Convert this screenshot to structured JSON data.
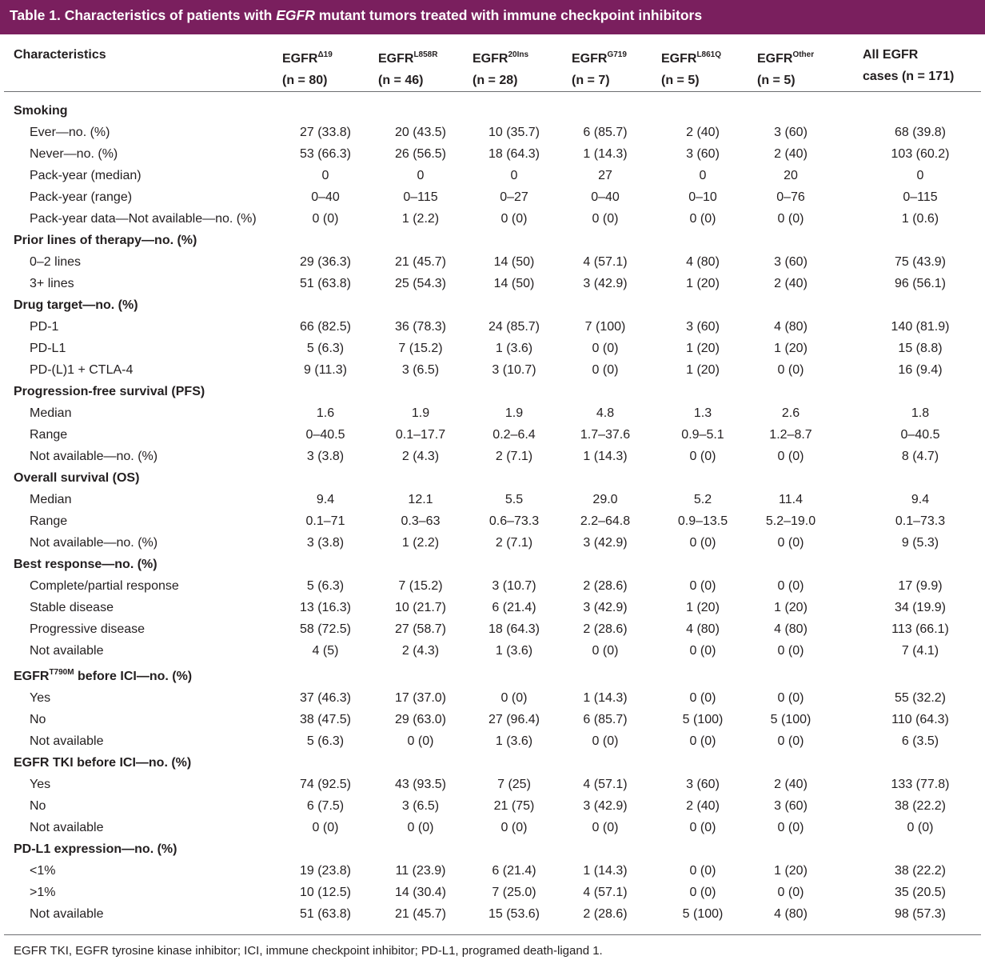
{
  "title": {
    "prefix": "Table 1. Characteristics of patients with ",
    "emphasis": "EGFR",
    "suffix": " mutant tumors treated with immune checkpoint inhibitors"
  },
  "columns": [
    {
      "line1": "Characteristics",
      "sup": "",
      "line2": ""
    },
    {
      "line1": "EGFR",
      "sup": "Δ19",
      "line2": "(n = 80)"
    },
    {
      "line1": "EGFR",
      "sup": "L858R",
      "line2": "(n = 46)"
    },
    {
      "line1": "EGFR",
      "sup": "20Ins",
      "line2": "(n = 28)"
    },
    {
      "line1": "EGFR",
      "sup": "G719",
      "line2": "(n = 7)"
    },
    {
      "line1": "EGFR",
      "sup": "L861Q",
      "line2": "(n = 5)"
    },
    {
      "line1": "EGFR",
      "sup": "Other",
      "line2": "(n = 5)"
    },
    {
      "line1": "All EGFR",
      "sup": "",
      "line2": "cases (n = 171)"
    }
  ],
  "rows": [
    {
      "type": "section",
      "label": "Smoking"
    },
    {
      "type": "row",
      "label": "Ever—no. (%)",
      "values": [
        "27 (33.8)",
        "20 (43.5)",
        "10 (35.7)",
        "6 (85.7)",
        "2 (40)",
        "3 (60)",
        "68 (39.8)"
      ]
    },
    {
      "type": "row",
      "label": "Never—no. (%)",
      "values": [
        "53 (66.3)",
        "26 (56.5)",
        "18 (64.3)",
        "1 (14.3)",
        "3 (60)",
        "2 (40)",
        "103 (60.2)"
      ]
    },
    {
      "type": "row",
      "label": "Pack-year (median)",
      "values": [
        "0",
        "0",
        "0",
        "27",
        "0",
        "20",
        "0"
      ]
    },
    {
      "type": "row",
      "label": "Pack-year (range)",
      "values": [
        "0–40",
        "0–115",
        "0–27",
        "0–40",
        "0–10",
        "0–76",
        "0–115"
      ]
    },
    {
      "type": "row",
      "label": "Pack-year data—Not available—no. (%)",
      "values": [
        "0 (0)",
        "1 (2.2)",
        "0 (0)",
        "0 (0)",
        "0 (0)",
        "0 (0)",
        "1 (0.6)"
      ]
    },
    {
      "type": "section",
      "label": "Prior lines of therapy—no. (%)"
    },
    {
      "type": "row",
      "label": "0–2 lines",
      "values": [
        "29 (36.3)",
        "21 (45.7)",
        "14 (50)",
        "4 (57.1)",
        "4 (80)",
        "3 (60)",
        "75 (43.9)"
      ]
    },
    {
      "type": "row",
      "label": "3+ lines",
      "values": [
        "51 (63.8)",
        "25 (54.3)",
        "14 (50)",
        "3 (42.9)",
        "1 (20)",
        "2 (40)",
        "96 (56.1)"
      ]
    },
    {
      "type": "section",
      "label": "Drug target—no. (%)"
    },
    {
      "type": "row",
      "label": "PD-1",
      "values": [
        "66 (82.5)",
        "36 (78.3)",
        "24 (85.7)",
        "7 (100)",
        "3 (60)",
        "4 (80)",
        "140 (81.9)"
      ]
    },
    {
      "type": "row",
      "label": "PD-L1",
      "values": [
        "5 (6.3)",
        "7 (15.2)",
        "1 (3.6)",
        "0 (0)",
        "1 (20)",
        "1 (20)",
        "15 (8.8)"
      ]
    },
    {
      "type": "row",
      "label": "PD-(L)1 + CTLA-4",
      "values": [
        "9 (11.3)",
        "3 (6.5)",
        "3 (10.7)",
        "0 (0)",
        "1 (20)",
        "0 (0)",
        "16 (9.4)"
      ]
    },
    {
      "type": "section",
      "label": "Progression-free survival (PFS)"
    },
    {
      "type": "row",
      "label": "Median",
      "values": [
        "1.6",
        "1.9",
        "1.9",
        "4.8",
        "1.3",
        "2.6",
        "1.8"
      ]
    },
    {
      "type": "row",
      "label": "Range",
      "values": [
        "0–40.5",
        "0.1–17.7",
        "0.2–6.4",
        "1.7–37.6",
        "0.9–5.1",
        "1.2–8.7",
        "0–40.5"
      ]
    },
    {
      "type": "row",
      "label": "Not available—no. (%)",
      "values": [
        "3 (3.8)",
        "2 (4.3)",
        "2 (7.1)",
        "1 (14.3)",
        "0 (0)",
        "0 (0)",
        "8 (4.7)"
      ]
    },
    {
      "type": "section",
      "label": "Overall survival (OS)"
    },
    {
      "type": "row",
      "label": "Median",
      "values": [
        "9.4",
        "12.1",
        "5.5",
        "29.0",
        "5.2",
        "11.4",
        "9.4"
      ]
    },
    {
      "type": "row",
      "label": "Range",
      "values": [
        "0.1–71",
        "0.3–63",
        "0.6–73.3",
        "2.2–64.8",
        "0.9–13.5",
        "5.2–19.0",
        "0.1–73.3"
      ]
    },
    {
      "type": "row",
      "label": "Not available—no. (%)",
      "values": [
        "3 (3.8)",
        "1 (2.2)",
        "2 (7.1)",
        "3 (42.9)",
        "0 (0)",
        "0 (0)",
        "9 (5.3)"
      ]
    },
    {
      "type": "section",
      "label": "Best response—no. (%)"
    },
    {
      "type": "row",
      "label": "Complete/partial response",
      "values": [
        "5 (6.3)",
        "7 (15.2)",
        "3 (10.7)",
        "2 (28.6)",
        "0 (0)",
        "0 (0)",
        "17 (9.9)"
      ]
    },
    {
      "type": "row",
      "label": "Stable disease",
      "values": [
        "13 (16.3)",
        "10 (21.7)",
        "6 (21.4)",
        "3 (42.9)",
        "1 (20)",
        "1 (20)",
        "34 (19.9)"
      ]
    },
    {
      "type": "row",
      "label": "Progressive disease",
      "values": [
        "58 (72.5)",
        "27 (58.7)",
        "18 (64.3)",
        "2 (28.6)",
        "4 (80)",
        "4 (80)",
        "113 (66.1)"
      ]
    },
    {
      "type": "row",
      "label": "Not available",
      "values": [
        "4 (5)",
        "2 (4.3)",
        "1 (3.6)",
        "0 (0)",
        "0 (0)",
        "0 (0)",
        "7 (4.1)"
      ]
    },
    {
      "type": "section",
      "label": "EGFR",
      "sup": "T790M",
      "label_suffix": " before ICI—no. (%)"
    },
    {
      "type": "row",
      "label": "Yes",
      "values": [
        "37 (46.3)",
        "17 (37.0)",
        "0 (0)",
        "1 (14.3)",
        "0 (0)",
        "0 (0)",
        "55 (32.2)"
      ]
    },
    {
      "type": "row",
      "label": "No",
      "values": [
        "38 (47.5)",
        "29 (63.0)",
        "27 (96.4)",
        "6 (85.7)",
        "5 (100)",
        "5 (100)",
        "110 (64.3)"
      ]
    },
    {
      "type": "row",
      "label": "Not available",
      "values": [
        "5 (6.3)",
        "0 (0)",
        "1 (3.6)",
        "0 (0)",
        "0 (0)",
        "0 (0)",
        "6 (3.5)"
      ]
    },
    {
      "type": "section",
      "label": "EGFR TKI before ICI—no. (%)"
    },
    {
      "type": "row",
      "label": "Yes",
      "values": [
        "74 (92.5)",
        "43 (93.5)",
        "7 (25)",
        "4 (57.1)",
        "3 (60)",
        "2 (40)",
        "133 (77.8)"
      ]
    },
    {
      "type": "row",
      "label": "No",
      "values": [
        "6 (7.5)",
        "3 (6.5)",
        "21 (75)",
        "3 (42.9)",
        "2 (40)",
        "3 (60)",
        "38 (22.2)"
      ]
    },
    {
      "type": "row",
      "label": "Not available",
      "values": [
        "0 (0)",
        "0 (0)",
        "0 (0)",
        "0 (0)",
        "0 (0)",
        "0 (0)",
        "0 (0)"
      ]
    },
    {
      "type": "section",
      "label": "PD-L1 expression—no. (%)"
    },
    {
      "type": "row",
      "label": "<1%",
      "values": [
        "19 (23.8)",
        "11 (23.9)",
        "6 (21.4)",
        "1 (14.3)",
        "0 (0)",
        "1 (20)",
        "38 (22.2)"
      ]
    },
    {
      "type": "row",
      "label": ">1%",
      "values": [
        "10 (12.5)",
        "14 (30.4)",
        "7 (25.0)",
        "4 (57.1)",
        "0 (0)",
        "0 (0)",
        "35 (20.5)"
      ]
    },
    {
      "type": "row",
      "label": "Not available",
      "values": [
        "51 (63.8)",
        "21 (45.7)",
        "15 (53.6)",
        "2 (28.6)",
        "5 (100)",
        "4 (80)",
        "98 (57.3)"
      ]
    }
  ],
  "footnote": "EGFR TKI, EGFR tyrosine kinase inhibitor; ICI, immune checkpoint inhibitor; PD-L1, programed death-ligand 1.",
  "colors": {
    "title_bar": "#7a1f5e",
    "text": "#231f20",
    "rule": "#6d6e71"
  }
}
